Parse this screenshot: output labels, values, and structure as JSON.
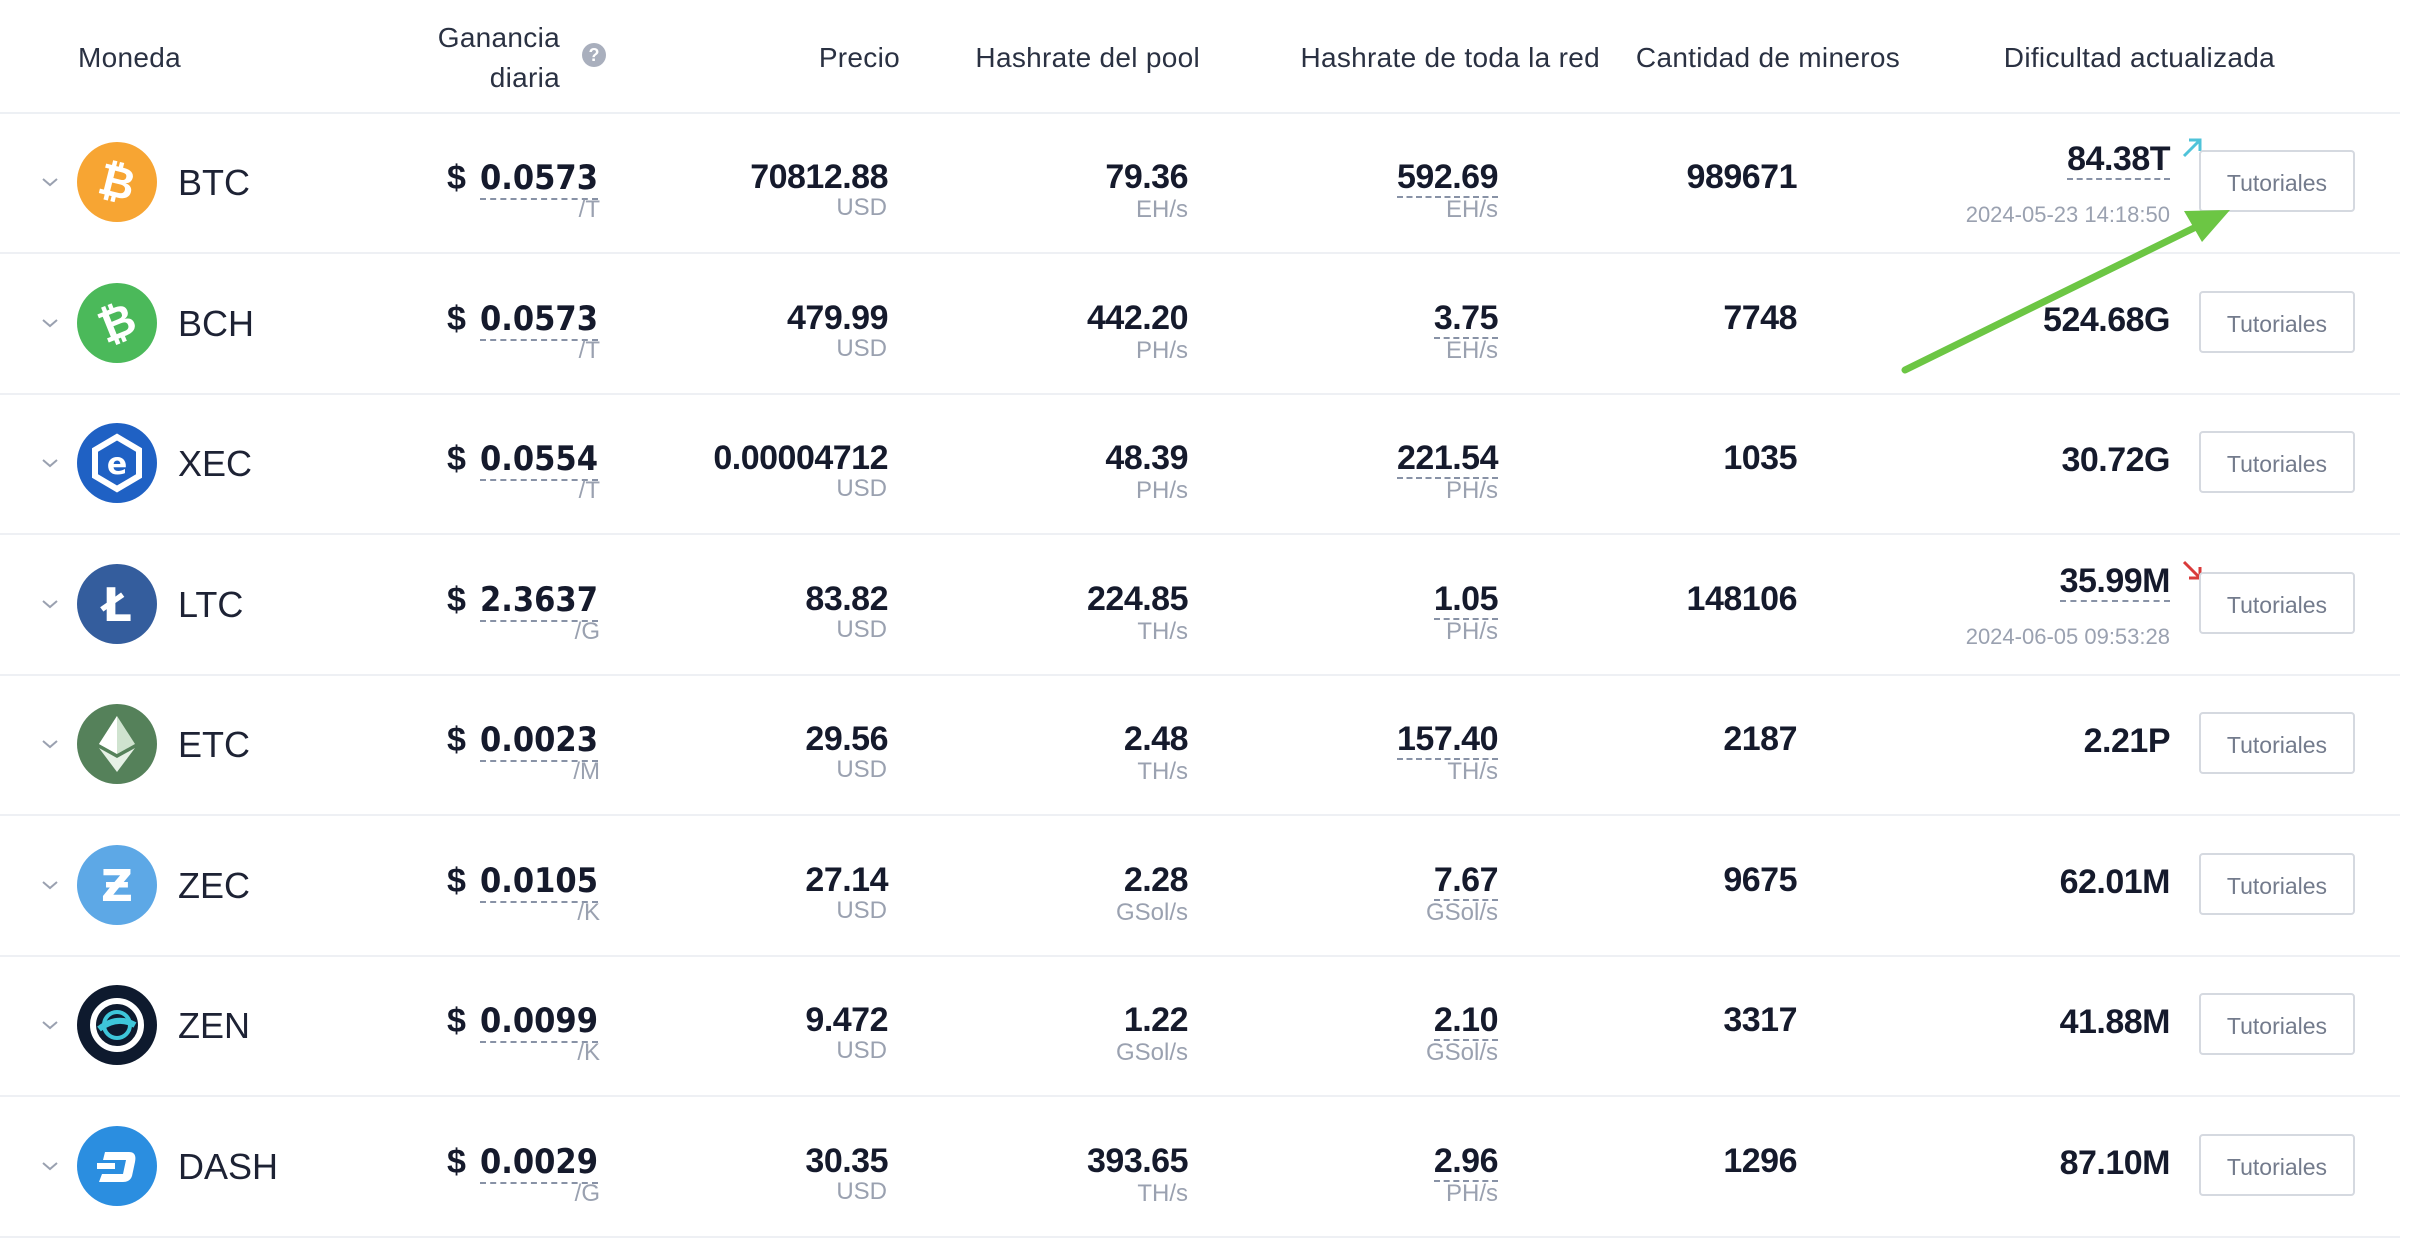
{
  "headers": {
    "coin": "Moneda",
    "profit_line1": "Ganancia",
    "profit_line2": "diaria",
    "price": "Precio",
    "pool_hashrate": "Hashrate del pool",
    "network_hashrate": "Hashrate de toda la red",
    "miners": "Cantidad de mineros",
    "difficulty": "Dificultad actualizada"
  },
  "help_icon": "question-circle-icon",
  "rows": [
    {
      "coin": "BTC",
      "icon": "bitcoin-icon",
      "color": "#f7a533",
      "profit_symbol": "$",
      "profit": "0.0573",
      "profit_unit": "/T",
      "price": "70812.88",
      "price_unit": "USD",
      "pool": "79.36",
      "pool_unit": "EH/s",
      "network": "592.69",
      "network_unit": "EH/s",
      "miners": "989671",
      "difficulty": "84.38T",
      "diff_time": "2024-05-23 14:18:50",
      "diff_trend": "up",
      "button": "Tutoriales"
    },
    {
      "coin": "BCH",
      "icon": "bitcoin-cash-icon",
      "color": "#4bb95a",
      "profit_symbol": "$",
      "profit": "0.0573",
      "profit_unit": "/T",
      "price": "479.99",
      "price_unit": "USD",
      "pool": "442.20",
      "pool_unit": "PH/s",
      "network": "3.75",
      "network_unit": "EH/s",
      "miners": "7748",
      "difficulty": "524.68G",
      "diff_time": "",
      "diff_trend": "",
      "button": "Tutoriales"
    },
    {
      "coin": "XEC",
      "icon": "ecash-icon",
      "color": "#1f61c4",
      "profit_symbol": "$",
      "profit": "0.0554",
      "profit_unit": "/T",
      "price": "0.00004712",
      "price_unit": "USD",
      "pool": "48.39",
      "pool_unit": "PH/s",
      "network": "221.54",
      "network_unit": "PH/s",
      "miners": "1035",
      "difficulty": "30.72G",
      "diff_time": "",
      "diff_trend": "",
      "button": "Tutoriales"
    },
    {
      "coin": "LTC",
      "icon": "litecoin-icon",
      "color": "#345d9d",
      "profit_symbol": "$",
      "profit": "2.3637",
      "profit_unit": "/G",
      "price": "83.82",
      "price_unit": "USD",
      "pool": "224.85",
      "pool_unit": "TH/s",
      "network": "1.05",
      "network_unit": "PH/s",
      "miners": "148106",
      "difficulty": "35.99M",
      "diff_time": "2024-06-05 09:53:28",
      "diff_trend": "down",
      "button": "Tutoriales"
    },
    {
      "coin": "ETC",
      "icon": "ethereum-classic-icon",
      "color": "#55815a",
      "profit_symbol": "$",
      "profit": "0.0023",
      "profit_unit": "/M",
      "price": "29.56",
      "price_unit": "USD",
      "pool": "2.48",
      "pool_unit": "TH/s",
      "network": "157.40",
      "network_unit": "TH/s",
      "miners": "2187",
      "difficulty": "2.21P",
      "diff_time": "",
      "diff_trend": "",
      "button": "Tutoriales"
    },
    {
      "coin": "ZEC",
      "icon": "zcash-icon",
      "color": "#5da8e6",
      "profit_symbol": "$",
      "profit": "0.0105",
      "profit_unit": "/K",
      "price": "27.14",
      "price_unit": "USD",
      "pool": "2.28",
      "pool_unit": "GSol/s",
      "network": "7.67",
      "network_unit": "GSol/s",
      "miners": "9675",
      "difficulty": "62.01M",
      "diff_time": "",
      "diff_trend": "",
      "button": "Tutoriales"
    },
    {
      "coin": "ZEN",
      "icon": "horizen-icon",
      "color": "#0e1a2e",
      "profit_symbol": "$",
      "profit": "0.0099",
      "profit_unit": "/K",
      "price": "9.472",
      "price_unit": "USD",
      "pool": "1.22",
      "pool_unit": "GSol/s",
      "network": "2.10",
      "network_unit": "GSol/s",
      "miners": "3317",
      "difficulty": "41.88M",
      "diff_time": "",
      "diff_trend": "",
      "button": "Tutoriales"
    },
    {
      "coin": "DASH",
      "icon": "dash-icon",
      "color": "#2b8ee0",
      "profit_symbol": "$",
      "profit": "0.0029",
      "profit_unit": "/G",
      "price": "30.35",
      "price_unit": "USD",
      "pool": "393.65",
      "pool_unit": "TH/s",
      "network": "2.96",
      "network_unit": "PH/s",
      "miners": "1296",
      "difficulty": "87.10M",
      "diff_time": "",
      "diff_trend": "",
      "button": "Tutoriales"
    }
  ],
  "colors": {
    "trend_up": "#4fc3d9",
    "trend_down": "#d93a3a",
    "annotation_arrow": "#6cc644"
  }
}
